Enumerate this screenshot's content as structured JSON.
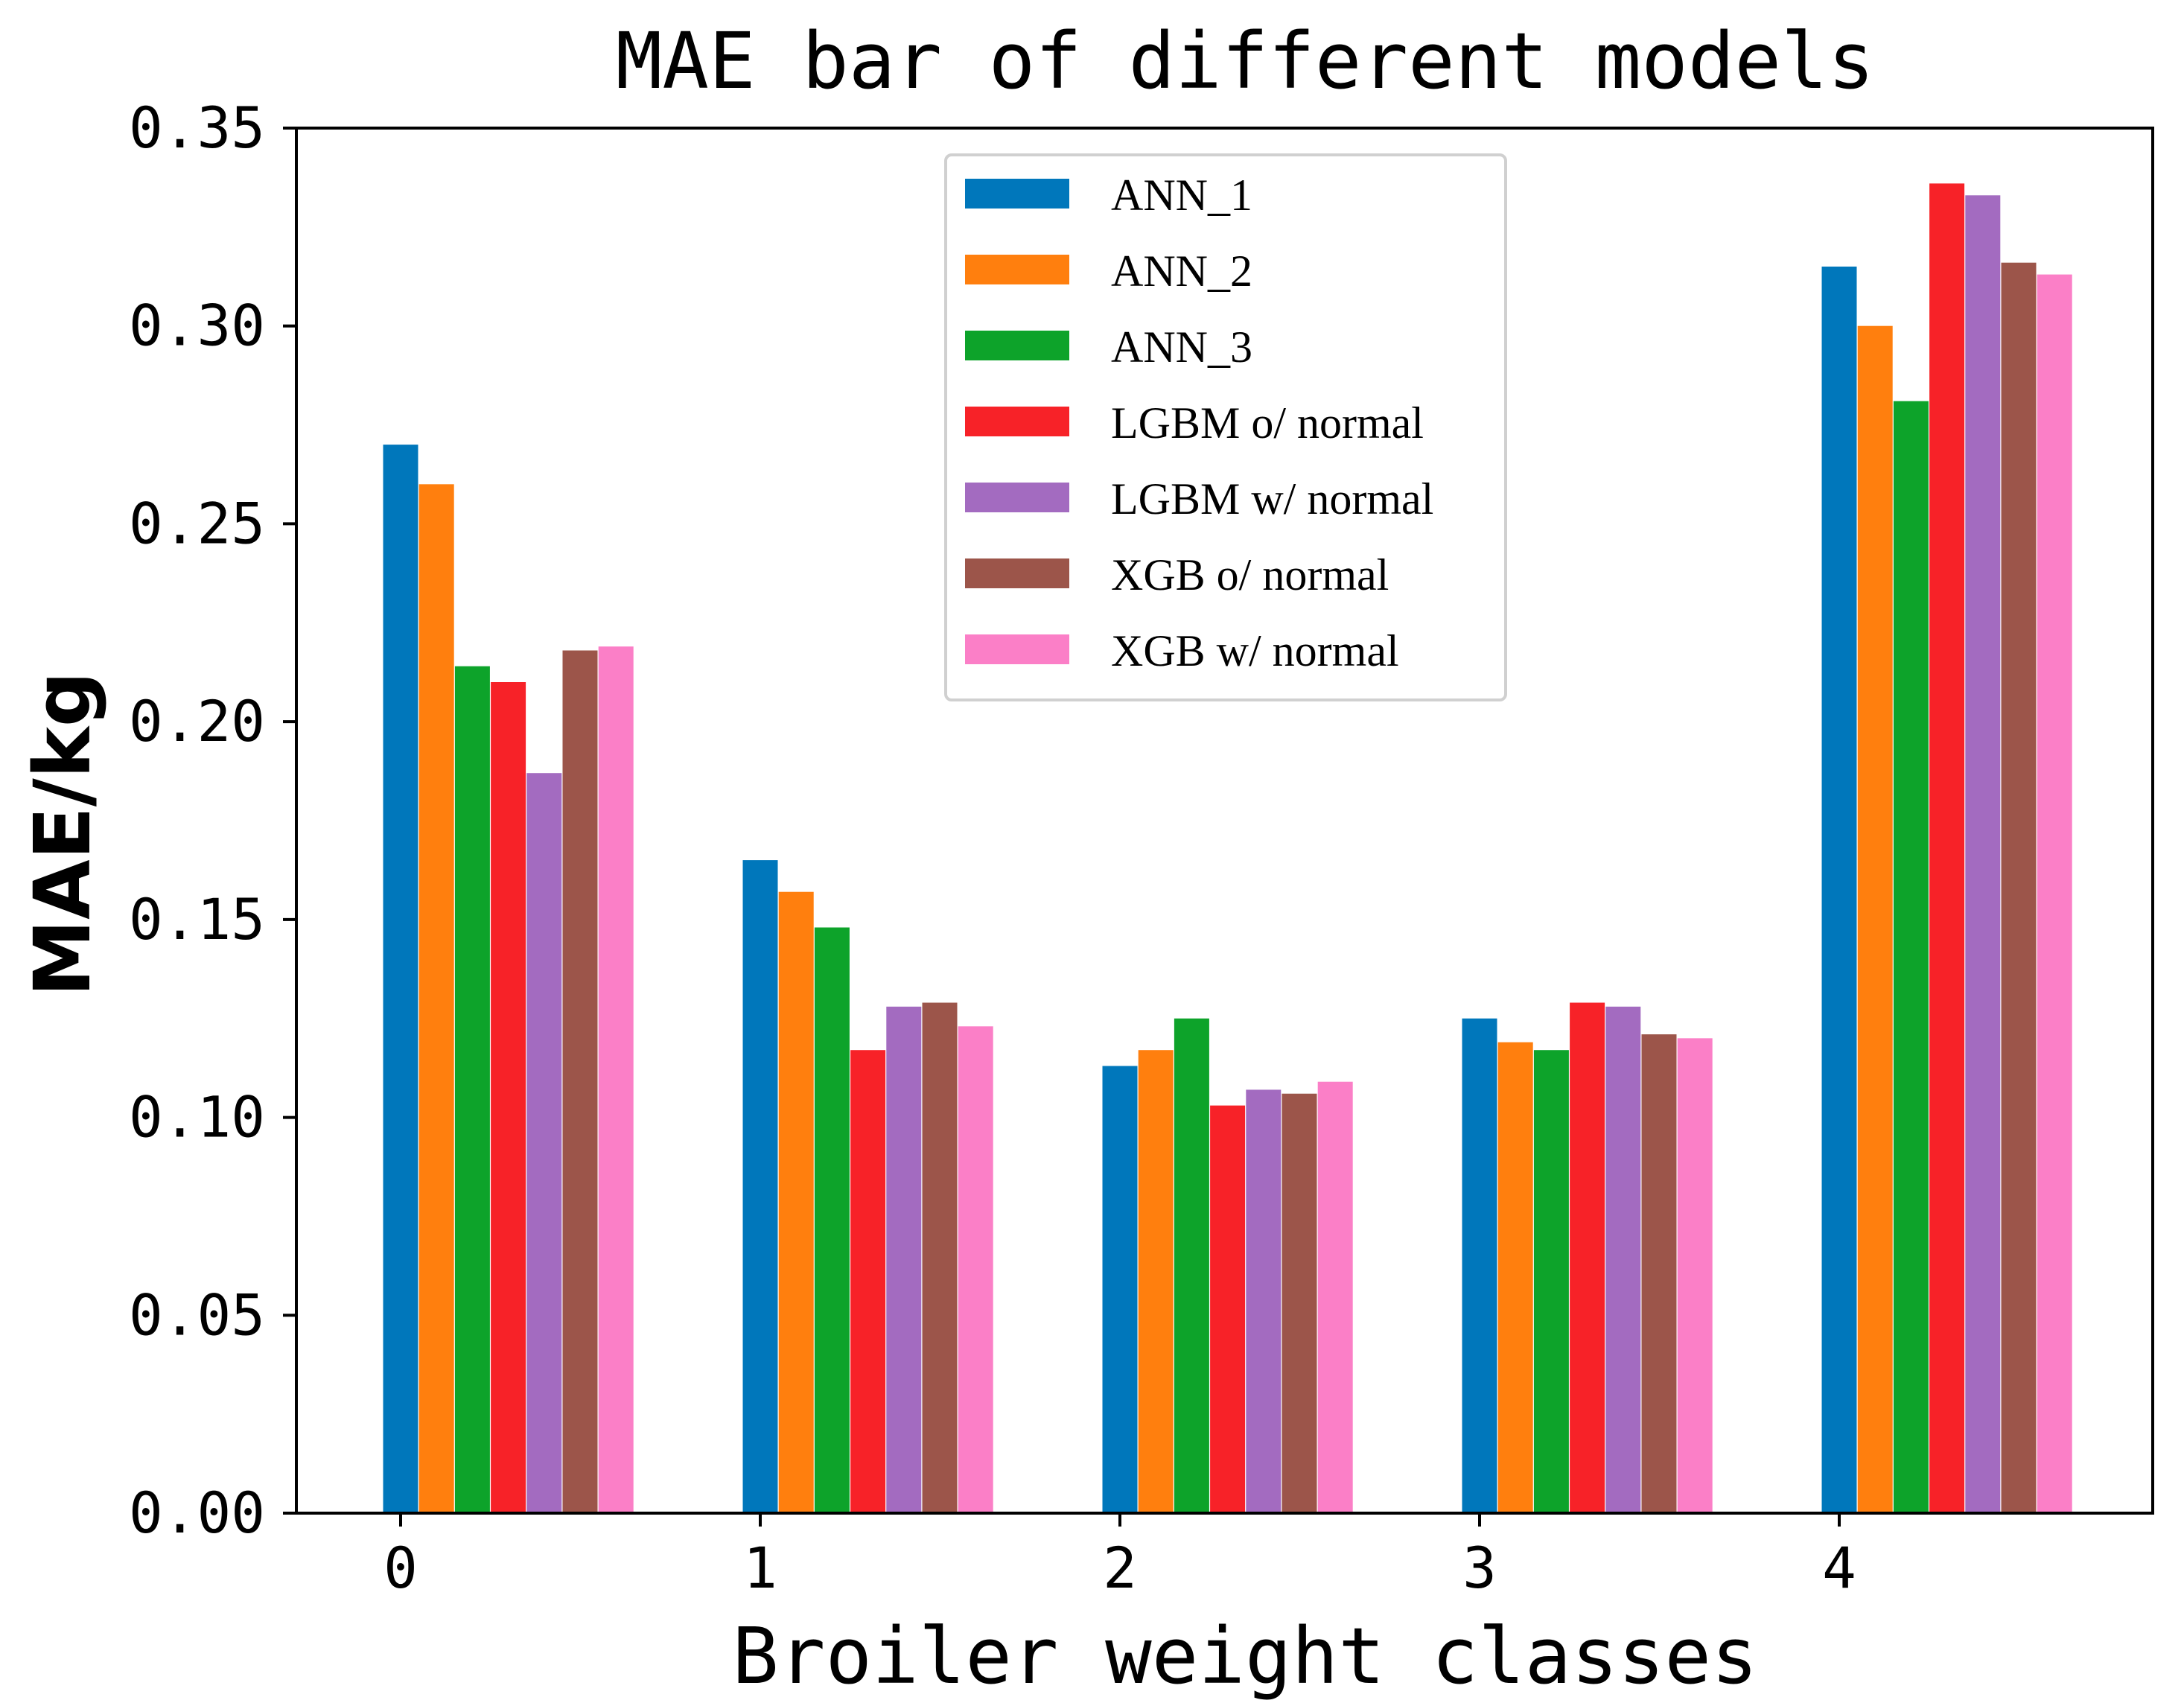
{
  "chart_data": {
    "type": "bar",
    "title": "MAE bar of different models",
    "xlabel": "Broiler weight classes",
    "ylabel": "MAE/kg",
    "categories": [
      "0",
      "1",
      "2",
      "3",
      "4"
    ],
    "ylim": [
      0,
      0.35
    ],
    "yticks": [
      {
        "value": 0.0,
        "label": "0.00"
      },
      {
        "value": 0.05,
        "label": "0.05"
      },
      {
        "value": 0.1,
        "label": "0.10"
      },
      {
        "value": 0.15,
        "label": "0.15"
      },
      {
        "value": 0.2,
        "label": "0.20"
      },
      {
        "value": 0.25,
        "label": "0.25"
      },
      {
        "value": 0.3,
        "label": "0.30"
      },
      {
        "value": 0.35,
        "label": "0.35"
      }
    ],
    "grid": false,
    "legend_position": "top-center",
    "series": [
      {
        "name": "ANN_1",
        "color": "#0077bb",
        "values": [
          0.27,
          0.165,
          0.113,
          0.125,
          0.315
        ]
      },
      {
        "name": "ANN_2",
        "color": "#ff7f0e",
        "values": [
          0.26,
          0.157,
          0.117,
          0.119,
          0.3
        ]
      },
      {
        "name": "ANN_3",
        "color": "#0da32a",
        "values": [
          0.214,
          0.148,
          0.125,
          0.117,
          0.281
        ]
      },
      {
        "name": "LGBM o/ normal",
        "color": "#f72228",
        "values": [
          0.21,
          0.117,
          0.103,
          0.129,
          0.336
        ]
      },
      {
        "name": "LGBM w/ normal",
        "color": "#a36bc0",
        "values": [
          0.187,
          0.128,
          0.107,
          0.128,
          0.333
        ]
      },
      {
        "name": "XGB o/ normal",
        "color": "#9c554a",
        "values": [
          0.218,
          0.129,
          0.106,
          0.121,
          0.316
        ]
      },
      {
        "name": "XGB w/ normal",
        "color": "#fb7fc7",
        "values": [
          0.219,
          0.123,
          0.109,
          0.12,
          0.313
        ]
      }
    ]
  }
}
